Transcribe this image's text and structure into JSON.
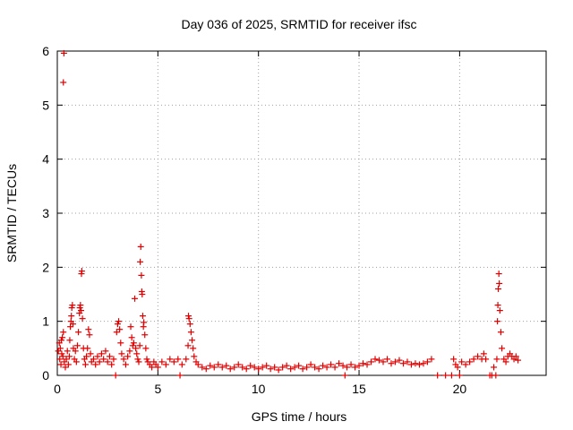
{
  "chart_data": {
    "type": "scatter",
    "title": "Day 036 of 2025, SRMTID for receiver ifsc",
    "xlabel": "GPS time / hours",
    "ylabel": "SRMTID / TECUs",
    "xlim": [
      0,
      24.3
    ],
    "ylim": [
      0,
      6
    ],
    "xticks": [
      0,
      5,
      10,
      15,
      20
    ],
    "yticks": [
      0,
      1,
      2,
      3,
      4,
      5,
      6
    ],
    "xtick_labels": [
      "0",
      "5",
      "10",
      "15",
      "20"
    ],
    "ytick_labels": [
      "0",
      "1",
      "2",
      "3",
      "4",
      "5",
      "6"
    ],
    "grid": true,
    "marker": "+",
    "series": [
      {
        "name": "ifsc",
        "color": "#e00000",
        "points": [
          [
            0.05,
            0.45
          ],
          [
            0.1,
            0.6
          ],
          [
            0.12,
            0.3
          ],
          [
            0.15,
            0.5
          ],
          [
            0.18,
            0.2
          ],
          [
            0.2,
            0.65
          ],
          [
            0.22,
            0.4
          ],
          [
            0.25,
            0.7
          ],
          [
            0.28,
            0.35
          ],
          [
            0.3,
            0.8
          ],
          [
            0.3,
            5.42
          ],
          [
            0.33,
            5.96
          ],
          [
            0.35,
            0.25
          ],
          [
            0.4,
            0.15
          ],
          [
            0.45,
            0.3
          ],
          [
            0.5,
            0.45
          ],
          [
            0.55,
            0.2
          ],
          [
            0.6,
            0.35
          ],
          [
            0.62,
            0.65
          ],
          [
            0.65,
            0.9
          ],
          [
            0.68,
            1.0
          ],
          [
            0.7,
            1.1
          ],
          [
            0.72,
            1.25
          ],
          [
            0.75,
            1.3
          ],
          [
            0.78,
            0.95
          ],
          [
            0.8,
            0.5
          ],
          [
            0.85,
            0.3
          ],
          [
            0.9,
            0.45
          ],
          [
            0.95,
            0.25
          ],
          [
            1.0,
            0.55
          ],
          [
            1.05,
            0.8
          ],
          [
            1.1,
            1.15
          ],
          [
            1.12,
            1.25
          ],
          [
            1.15,
            1.3
          ],
          [
            1.18,
            1.2
          ],
          [
            1.2,
            1.88
          ],
          [
            1.22,
            1.93
          ],
          [
            1.25,
            1.05
          ],
          [
            1.3,
            0.5
          ],
          [
            1.35,
            0.3
          ],
          [
            1.4,
            0.2
          ],
          [
            1.45,
            0.35
          ],
          [
            1.5,
            0.5
          ],
          [
            1.55,
            0.85
          ],
          [
            1.6,
            0.75
          ],
          [
            1.65,
            0.4
          ],
          [
            1.7,
            0.25
          ],
          [
            1.8,
            0.3
          ],
          [
            1.9,
            0.2
          ],
          [
            2.0,
            0.35
          ],
          [
            2.1,
            0.25
          ],
          [
            2.2,
            0.4
          ],
          [
            2.3,
            0.3
          ],
          [
            2.4,
            0.45
          ],
          [
            2.5,
            0.25
          ],
          [
            2.6,
            0.35
          ],
          [
            2.7,
            0.2
          ],
          [
            2.8,
            0.3
          ],
          [
            2.9,
            0.0
          ],
          [
            2.95,
            0.8
          ],
          [
            3.0,
            0.95
          ],
          [
            3.05,
            1.0
          ],
          [
            3.1,
            0.85
          ],
          [
            3.15,
            0.6
          ],
          [
            3.2,
            0.4
          ],
          [
            3.3,
            0.3
          ],
          [
            3.4,
            0.2
          ],
          [
            3.5,
            0.35
          ],
          [
            3.6,
            0.45
          ],
          [
            3.65,
            0.9
          ],
          [
            3.7,
            0.7
          ],
          [
            3.75,
            0.55
          ],
          [
            3.8,
            0.6
          ],
          [
            3.85,
            1.42
          ],
          [
            3.9,
            0.5
          ],
          [
            3.95,
            0.4
          ],
          [
            4.0,
            0.3
          ],
          [
            4.05,
            0.25
          ],
          [
            4.1,
            0.55
          ],
          [
            4.12,
            2.1
          ],
          [
            4.15,
            2.38
          ],
          [
            4.18,
            1.85
          ],
          [
            4.2,
            1.55
          ],
          [
            4.22,
            1.5
          ],
          [
            4.25,
            1.1
          ],
          [
            4.28,
            0.9
          ],
          [
            4.3,
            0.98
          ],
          [
            4.35,
            0.75
          ],
          [
            4.4,
            0.5
          ],
          [
            4.45,
            0.3
          ],
          [
            4.5,
            0.25
          ],
          [
            4.6,
            0.2
          ],
          [
            4.7,
            0.15
          ],
          [
            4.8,
            0.25
          ],
          [
            4.9,
            0.2
          ],
          [
            5.0,
            0.15
          ],
          [
            5.2,
            0.25
          ],
          [
            5.4,
            0.2
          ],
          [
            5.6,
            0.3
          ],
          [
            5.8,
            0.25
          ],
          [
            6.0,
            0.3
          ],
          [
            6.1,
            0.0
          ],
          [
            6.2,
            0.2
          ],
          [
            6.4,
            0.3
          ],
          [
            6.5,
            0.55
          ],
          [
            6.52,
            1.1
          ],
          [
            6.55,
            1.05
          ],
          [
            6.6,
            0.95
          ],
          [
            6.65,
            0.8
          ],
          [
            6.7,
            0.65
          ],
          [
            6.75,
            0.5
          ],
          [
            6.8,
            0.35
          ],
          [
            6.9,
            0.25
          ],
          [
            7.0,
            0.2
          ],
          [
            7.2,
            0.15
          ],
          [
            7.4,
            0.12
          ],
          [
            7.6,
            0.18
          ],
          [
            7.8,
            0.15
          ],
          [
            8.0,
            0.2
          ],
          [
            8.2,
            0.15
          ],
          [
            8.4,
            0.18
          ],
          [
            8.6,
            0.12
          ],
          [
            8.8,
            0.15
          ],
          [
            9.0,
            0.2
          ],
          [
            9.2,
            0.15
          ],
          [
            9.4,
            0.12
          ],
          [
            9.6,
            0.18
          ],
          [
            9.8,
            0.15
          ],
          [
            10.0,
            0.12
          ],
          [
            10.2,
            0.15
          ],
          [
            10.4,
            0.18
          ],
          [
            10.6,
            0.12
          ],
          [
            10.8,
            0.15
          ],
          [
            11.0,
            0.1
          ],
          [
            11.2,
            0.15
          ],
          [
            11.4,
            0.18
          ],
          [
            11.6,
            0.12
          ],
          [
            11.8,
            0.15
          ],
          [
            12.0,
            0.18
          ],
          [
            12.2,
            0.12
          ],
          [
            12.4,
            0.15
          ],
          [
            12.6,
            0.2
          ],
          [
            12.8,
            0.15
          ],
          [
            13.0,
            0.12
          ],
          [
            13.2,
            0.18
          ],
          [
            13.4,
            0.15
          ],
          [
            13.6,
            0.2
          ],
          [
            13.8,
            0.15
          ],
          [
            14.0,
            0.22
          ],
          [
            14.2,
            0.18
          ],
          [
            14.3,
            0.0
          ],
          [
            14.4,
            0.15
          ],
          [
            14.6,
            0.2
          ],
          [
            14.8,
            0.15
          ],
          [
            15.0,
            0.18
          ],
          [
            15.2,
            0.22
          ],
          [
            15.4,
            0.2
          ],
          [
            15.6,
            0.25
          ],
          [
            15.8,
            0.3
          ],
          [
            16.0,
            0.28
          ],
          [
            16.2,
            0.25
          ],
          [
            16.4,
            0.3
          ],
          [
            16.6,
            0.22
          ],
          [
            16.8,
            0.25
          ],
          [
            17.0,
            0.28
          ],
          [
            17.2,
            0.22
          ],
          [
            17.4,
            0.25
          ],
          [
            17.6,
            0.2
          ],
          [
            17.8,
            0.22
          ],
          [
            18.0,
            0.2
          ],
          [
            18.2,
            0.22
          ],
          [
            18.4,
            0.25
          ],
          [
            18.6,
            0.3
          ],
          [
            18.9,
            0.0
          ],
          [
            19.3,
            0.0
          ],
          [
            19.6,
            0.0
          ],
          [
            19.7,
            0.3
          ],
          [
            19.8,
            0.2
          ],
          [
            19.9,
            0.15
          ],
          [
            20.0,
            0.0
          ],
          [
            20.1,
            0.25
          ],
          [
            20.3,
            0.2
          ],
          [
            20.5,
            0.25
          ],
          [
            20.7,
            0.3
          ],
          [
            20.9,
            0.35
          ],
          [
            21.1,
            0.3
          ],
          [
            21.2,
            0.4
          ],
          [
            21.3,
            0.3
          ],
          [
            21.5,
            0.0
          ],
          [
            21.6,
            0.0
          ],
          [
            21.7,
            0.15
          ],
          [
            21.8,
            0.0
          ],
          [
            21.85,
            0.3
          ],
          [
            21.88,
            1.0
          ],
          [
            21.9,
            1.3
          ],
          [
            21.92,
            1.6
          ],
          [
            21.95,
            1.88
          ],
          [
            21.97,
            1.7
          ],
          [
            22.0,
            1.2
          ],
          [
            22.05,
            0.8
          ],
          [
            22.1,
            0.5
          ],
          [
            22.2,
            0.3
          ],
          [
            22.3,
            0.25
          ],
          [
            22.4,
            0.35
          ],
          [
            22.5,
            0.4
          ],
          [
            22.6,
            0.35
          ],
          [
            22.7,
            0.3
          ],
          [
            22.8,
            0.35
          ],
          [
            22.9,
            0.28
          ]
        ]
      }
    ]
  }
}
